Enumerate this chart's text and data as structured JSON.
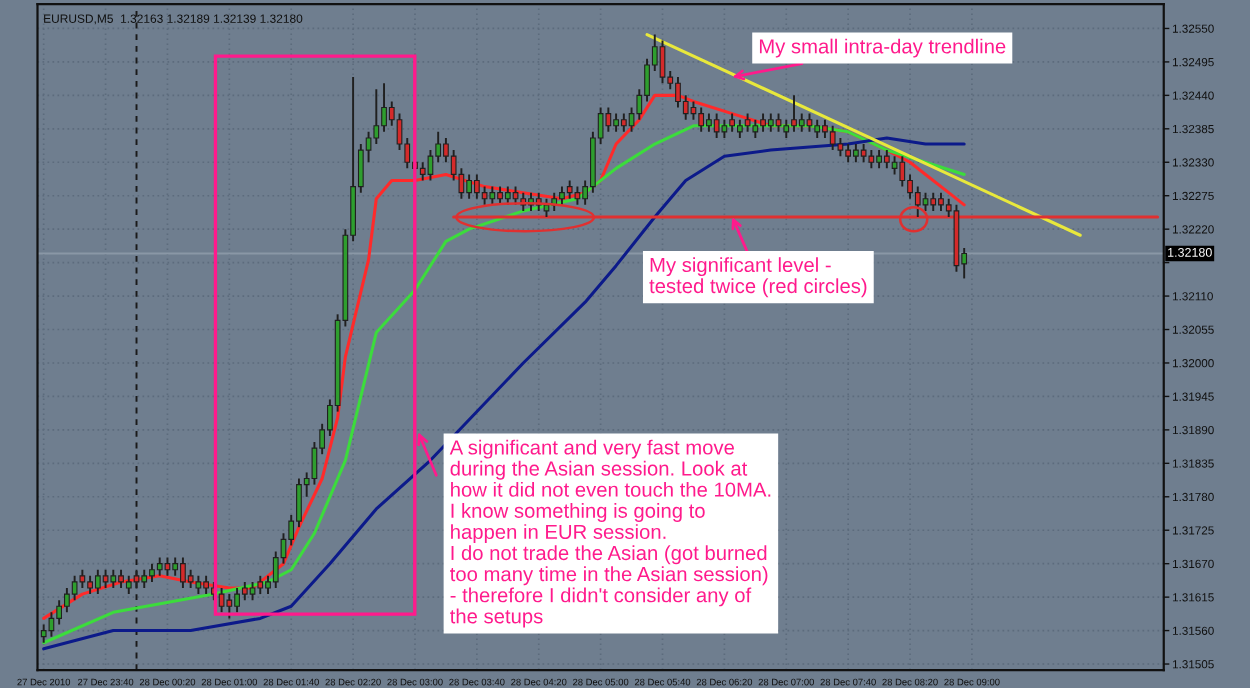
{
  "chart_data": {
    "type": "candlestick",
    "title": "EURUSD,M5  1.32163 1.32189 1.32139 1.32180",
    "x": [
      "2010-12-27T23:00",
      "2010-12-27T23:05",
      "2010-12-27T23:10",
      "2010-12-27T23:15",
      "2010-12-27T23:20",
      "2010-12-27T23:25",
      "2010-12-27T23:30",
      "2010-12-27T23:35",
      "2010-12-27T23:40",
      "2010-12-27T23:45",
      "2010-12-27T23:50",
      "2010-12-27T23:55",
      "2010-12-28T00:00",
      "2010-12-28T00:05",
      "2010-12-28T00:10",
      "2010-12-28T00:15",
      "2010-12-28T00:20",
      "2010-12-28T00:25",
      "2010-12-28T00:30",
      "2010-12-28T00:35",
      "2010-12-28T00:40",
      "2010-12-28T00:45",
      "2010-12-28T00:50",
      "2010-12-28T00:55",
      "2010-12-28T01:00",
      "2010-12-28T01:05",
      "2010-12-28T01:10",
      "2010-12-28T01:15",
      "2010-12-28T01:20",
      "2010-12-28T01:25",
      "2010-12-28T01:30",
      "2010-12-28T01:35",
      "2010-12-28T01:40",
      "2010-12-28T01:45",
      "2010-12-28T01:50",
      "2010-12-28T01:55",
      "2010-12-28T02:00",
      "2010-12-28T02:05",
      "2010-12-28T02:10",
      "2010-12-28T02:15",
      "2010-12-28T02:20",
      "2010-12-28T02:25",
      "2010-12-28T02:30",
      "2010-12-28T02:35",
      "2010-12-28T02:40",
      "2010-12-28T02:45",
      "2010-12-28T02:50",
      "2010-12-28T02:55",
      "2010-12-28T03:00",
      "2010-12-28T03:05",
      "2010-12-28T03:10",
      "2010-12-28T03:15",
      "2010-12-28T03:20",
      "2010-12-28T03:25",
      "2010-12-28T03:30",
      "2010-12-28T03:35",
      "2010-12-28T03:40",
      "2010-12-28T03:45",
      "2010-12-28T03:50",
      "2010-12-28T03:55",
      "2010-12-28T04:00",
      "2010-12-28T04:05",
      "2010-12-28T04:10",
      "2010-12-28T04:15",
      "2010-12-28T04:20",
      "2010-12-28T04:25",
      "2010-12-28T04:30",
      "2010-12-28T04:35",
      "2010-12-28T04:40",
      "2010-12-28T04:45",
      "2010-12-28T04:50",
      "2010-12-28T04:55",
      "2010-12-28T05:00",
      "2010-12-28T05:05",
      "2010-12-28T05:10",
      "2010-12-28T05:15",
      "2010-12-28T05:20",
      "2010-12-28T05:25",
      "2010-12-28T05:30",
      "2010-12-28T05:35",
      "2010-12-28T05:40",
      "2010-12-28T05:45",
      "2010-12-28T05:50",
      "2010-12-28T05:55",
      "2010-12-28T06:00",
      "2010-12-28T06:05",
      "2010-12-28T06:10",
      "2010-12-28T06:15",
      "2010-12-28T06:20",
      "2010-12-28T06:25",
      "2010-12-28T06:30",
      "2010-12-28T06:35",
      "2010-12-28T06:40",
      "2010-12-28T06:45",
      "2010-12-28T06:50",
      "2010-12-28T06:55",
      "2010-12-28T07:00",
      "2010-12-28T07:05",
      "2010-12-28T07:10",
      "2010-12-28T07:15",
      "2010-12-28T07:20",
      "2010-12-28T07:25",
      "2010-12-28T07:30",
      "2010-12-28T07:35",
      "2010-12-28T07:40",
      "2010-12-28T07:45",
      "2010-12-28T07:50",
      "2010-12-28T07:55",
      "2010-12-28T08:00",
      "2010-12-28T08:05",
      "2010-12-28T08:10",
      "2010-12-28T08:15",
      "2010-12-28T08:20",
      "2010-12-28T08:25",
      "2010-12-28T08:30",
      "2010-12-28T08:35",
      "2010-12-28T08:40",
      "2010-12-28T08:45",
      "2010-12-28T08:50",
      "2010-12-28T08:55"
    ],
    "ohlc": [
      [
        1.3155,
        1.3157,
        1.3154,
        1.3156
      ],
      [
        1.3156,
        1.3159,
        1.3155,
        1.3158
      ],
      [
        1.3158,
        1.3161,
        1.3157,
        1.316
      ],
      [
        1.316,
        1.3163,
        1.3159,
        1.3162
      ],
      [
        1.3162,
        1.3165,
        1.3161,
        1.3164
      ],
      [
        1.3165,
        1.3166,
        1.3163,
        1.3164
      ],
      [
        1.3164,
        1.3165,
        1.3162,
        1.3163
      ],
      [
        1.3163,
        1.3166,
        1.3162,
        1.3165
      ],
      [
        1.3165,
        1.3166,
        1.3163,
        1.3164
      ],
      [
        1.3164,
        1.3166,
        1.3163,
        1.3165
      ],
      [
        1.3165,
        1.3166,
        1.3163,
        1.3164
      ],
      [
        1.3163,
        1.3165,
        1.3162,
        1.3164
      ],
      [
        1.3165,
        1.3166,
        1.3163,
        1.3164
      ],
      [
        1.3164,
        1.3166,
        1.3163,
        1.3165
      ],
      [
        1.3165,
        1.3167,
        1.3164,
        1.3166
      ],
      [
        1.3166,
        1.3168,
        1.3165,
        1.3167
      ],
      [
        1.3167,
        1.3168,
        1.3165,
        1.3166
      ],
      [
        1.3166,
        1.3168,
        1.3165,
        1.3167
      ],
      [
        1.3167,
        1.3168,
        1.3163,
        1.3164
      ],
      [
        1.3165,
        1.3166,
        1.3163,
        1.3164
      ],
      [
        1.3163,
        1.3165,
        1.3162,
        1.3164
      ],
      [
        1.3164,
        1.3165,
        1.3162,
        1.3163
      ],
      [
        1.3163,
        1.3164,
        1.3161,
        1.3162
      ],
      [
        1.3162,
        1.3163,
        1.3159,
        1.316
      ],
      [
        1.3161,
        1.3162,
        1.3158,
        1.316
      ],
      [
        1.316,
        1.3163,
        1.3159,
        1.3162
      ],
      [
        1.3163,
        1.3164,
        1.3161,
        1.3162
      ],
      [
        1.3162,
        1.3164,
        1.3161,
        1.3163
      ],
      [
        1.3164,
        1.3165,
        1.3162,
        1.3163
      ],
      [
        1.3163,
        1.3165,
        1.3162,
        1.3164
      ],
      [
        1.3164,
        1.3169,
        1.3163,
        1.3168
      ],
      [
        1.3168,
        1.3172,
        1.3167,
        1.3171
      ],
      [
        1.3171,
        1.3175,
        1.317,
        1.3174
      ],
      [
        1.3174,
        1.3181,
        1.3173,
        1.318
      ],
      [
        1.318,
        1.3182,
        1.3178,
        1.3181
      ],
      [
        1.3181,
        1.3187,
        1.318,
        1.3186
      ],
      [
        1.3186,
        1.319,
        1.3185,
        1.3189
      ],
      [
        1.3189,
        1.3194,
        1.3188,
        1.3193
      ],
      [
        1.3193,
        1.3208,
        1.3192,
        1.3207
      ],
      [
        1.3207,
        1.3222,
        1.3206,
        1.3221
      ],
      [
        1.3221,
        1.3247,
        1.322,
        1.3229
      ],
      [
        1.3229,
        1.3236,
        1.3228,
        1.3235
      ],
      [
        1.3235,
        1.3238,
        1.3233,
        1.3237
      ],
      [
        1.3237,
        1.3245,
        1.3236,
        1.3239
      ],
      [
        1.3239,
        1.3246,
        1.3238,
        1.3242
      ],
      [
        1.3242,
        1.3243,
        1.3239,
        1.324
      ],
      [
        1.324,
        1.3241,
        1.3235,
        1.3236
      ],
      [
        1.3236,
        1.3237,
        1.3232,
        1.3233
      ],
      [
        1.3233,
        1.3234,
        1.3231,
        1.3232
      ],
      [
        1.3232,
        1.3233,
        1.323,
        1.3231
      ],
      [
        1.3231,
        1.3235,
        1.323,
        1.3234
      ],
      [
        1.3234,
        1.3238,
        1.3233,
        1.3236
      ],
      [
        1.3236,
        1.3237,
        1.3233,
        1.3234
      ],
      [
        1.3234,
        1.3235,
        1.323,
        1.3231
      ],
      [
        1.3231,
        1.3232,
        1.3227,
        1.3228
      ],
      [
        1.3228,
        1.3231,
        1.3227,
        1.323
      ],
      [
        1.323,
        1.3231,
        1.3227,
        1.3228
      ],
      [
        1.3228,
        1.3229,
        1.3226,
        1.3227
      ],
      [
        1.3227,
        1.3229,
        1.3226,
        1.3228
      ],
      [
        1.3228,
        1.3229,
        1.3226,
        1.3227
      ],
      [
        1.3227,
        1.3229,
        1.3226,
        1.3228
      ],
      [
        1.3228,
        1.3229,
        1.3226,
        1.3227
      ],
      [
        1.3227,
        1.3228,
        1.3225,
        1.3226
      ],
      [
        1.3226,
        1.3228,
        1.3225,
        1.3227
      ],
      [
        1.3227,
        1.3228,
        1.3225,
        1.3226
      ],
      [
        1.3225,
        1.3227,
        1.3224,
        1.3226
      ],
      [
        1.3226,
        1.3228,
        1.3225,
        1.3227
      ],
      [
        1.3227,
        1.3229,
        1.3226,
        1.3228
      ],
      [
        1.3229,
        1.323,
        1.3227,
        1.3228
      ],
      [
        1.3228,
        1.3229,
        1.3226,
        1.3227
      ],
      [
        1.3227,
        1.323,
        1.3226,
        1.3229
      ],
      [
        1.3229,
        1.3238,
        1.3228,
        1.3237
      ],
      [
        1.3237,
        1.3242,
        1.3236,
        1.3241
      ],
      [
        1.3241,
        1.3242,
        1.3238,
        1.3239
      ],
      [
        1.3239,
        1.3241,
        1.3238,
        1.324
      ],
      [
        1.324,
        1.3241,
        1.3238,
        1.3239
      ],
      [
        1.3239,
        1.3242,
        1.3238,
        1.3241
      ],
      [
        1.3241,
        1.3245,
        1.324,
        1.3244
      ],
      [
        1.3244,
        1.325,
        1.3243,
        1.3249
      ],
      [
        1.3249,
        1.3254,
        1.3248,
        1.3252
      ],
      [
        1.3252,
        1.3253,
        1.3246,
        1.3247
      ],
      [
        1.3247,
        1.3248,
        1.3245,
        1.3246
      ],
      [
        1.3246,
        1.3247,
        1.3242,
        1.3243
      ],
      [
        1.3243,
        1.3244,
        1.324,
        1.3241
      ],
      [
        1.3242,
        1.3243,
        1.324,
        1.3241
      ],
      [
        1.3241,
        1.3242,
        1.3238,
        1.3239
      ],
      [
        1.3239,
        1.3241,
        1.3238,
        1.324
      ],
      [
        1.324,
        1.3241,
        1.3237,
        1.3238
      ],
      [
        1.3238,
        1.324,
        1.3237,
        1.3239
      ],
      [
        1.324,
        1.3241,
        1.3238,
        1.3239
      ],
      [
        1.3238,
        1.324,
        1.3237,
        1.3239
      ],
      [
        1.324,
        1.3241,
        1.3238,
        1.3239
      ],
      [
        1.3238,
        1.324,
        1.3237,
        1.3239
      ],
      [
        1.324,
        1.3241,
        1.3238,
        1.3239
      ],
      [
        1.3239,
        1.3241,
        1.3238,
        1.324
      ],
      [
        1.324,
        1.3241,
        1.3238,
        1.3239
      ],
      [
        1.3238,
        1.324,
        1.3237,
        1.3239
      ],
      [
        1.324,
        1.3244,
        1.3238,
        1.3239
      ],
      [
        1.3239,
        1.3241,
        1.3238,
        1.324
      ],
      [
        1.324,
        1.3241,
        1.3238,
        1.3239
      ],
      [
        1.3238,
        1.324,
        1.3237,
        1.3239
      ],
      [
        1.3239,
        1.324,
        1.3237,
        1.3238
      ],
      [
        1.3238,
        1.3239,
        1.3235,
        1.3236
      ],
      [
        1.3236,
        1.3237,
        1.3234,
        1.3235
      ],
      [
        1.3235,
        1.3236,
        1.3233,
        1.3234
      ],
      [
        1.3234,
        1.3236,
        1.3233,
        1.3235
      ],
      [
        1.3235,
        1.3236,
        1.3233,
        1.3234
      ],
      [
        1.3234,
        1.3235,
        1.3232,
        1.3233
      ],
      [
        1.3233,
        1.3235,
        1.3232,
        1.3234
      ],
      [
        1.3234,
        1.3235,
        1.3232,
        1.3233
      ],
      [
        1.3232,
        1.3234,
        1.3231,
        1.3233
      ],
      [
        1.3233,
        1.3234,
        1.3229,
        1.323
      ],
      [
        1.323,
        1.3231,
        1.3227,
        1.3228
      ],
      [
        1.3228,
        1.3229,
        1.3224,
        1.3226
      ],
      [
        1.3226,
        1.3228,
        1.3225,
        1.3227
      ],
      [
        1.3227,
        1.3228,
        1.3225,
        1.3226
      ],
      [
        1.3227,
        1.3228,
        1.3225,
        1.3226
      ],
      [
        1.3226,
        1.3227,
        1.3224,
        1.3225
      ],
      [
        1.3225,
        1.3226,
        1.3215,
        1.3216
      ],
      [
        1.32163,
        1.32189,
        1.32139,
        1.3218
      ]
    ],
    "colors": [
      "#2e9e2e",
      "#2e9e2e",
      "#2e9e2e",
      "#2e9e2e",
      "#2e9e2e",
      "#d42a2a",
      "#d42a2a",
      "#2e9e2e",
      "#d42a2a",
      "#2e9e2e",
      "#d42a2a",
      "#2e9e2e",
      "#d42a2a",
      "#2e9e2e",
      "#2e9e2e",
      "#2e9e2e",
      "#d42a2a",
      "#2e9e2e",
      "#d42a2a",
      "#d42a2a",
      "#2e9e2e",
      "#d42a2a",
      "#d42a2a",
      "#d42a2a",
      "#d42a2a",
      "#2e9e2e",
      "#d42a2a",
      "#2e9e2e",
      "#d42a2a",
      "#2e9e2e",
      "#2e9e2e",
      "#2e9e2e",
      "#2e9e2e",
      "#2e9e2e",
      "#2e9e2e",
      "#2e9e2e",
      "#2e9e2e",
      "#2e9e2e",
      "#2e9e2e",
      "#2e9e2e",
      "#2e9e2e",
      "#2e9e2e",
      "#2e9e2e",
      "#2e9e2e",
      "#2e9e2e",
      "#d42a2a",
      "#d42a2a",
      "#d42a2a",
      "#d42a2a",
      "#d42a2a",
      "#2e9e2e",
      "#2e9e2e",
      "#d42a2a",
      "#d42a2a",
      "#d42a2a",
      "#2e9e2e",
      "#d42a2a",
      "#d42a2a",
      "#2e9e2e",
      "#d42a2a",
      "#2e9e2e",
      "#d42a2a",
      "#d42a2a",
      "#2e9e2e",
      "#d42a2a",
      "#2e9e2e",
      "#2e9e2e",
      "#2e9e2e",
      "#d42a2a",
      "#d42a2a",
      "#2e9e2e",
      "#2e9e2e",
      "#2e9e2e",
      "#d42a2a",
      "#2e9e2e",
      "#d42a2a",
      "#2e9e2e",
      "#2e9e2e",
      "#2e9e2e",
      "#2e9e2e",
      "#d42a2a",
      "#d42a2a",
      "#d42a2a",
      "#d42a2a",
      "#d42a2a",
      "#d42a2a",
      "#2e9e2e",
      "#d42a2a",
      "#2e9e2e",
      "#d42a2a",
      "#2e9e2e",
      "#d42a2a",
      "#2e9e2e",
      "#d42a2a",
      "#2e9e2e",
      "#d42a2a",
      "#2e9e2e",
      "#d42a2a",
      "#2e9e2e",
      "#d42a2a",
      "#2e9e2e",
      "#d42a2a",
      "#d42a2a",
      "#d42a2a",
      "#d42a2a",
      "#2e9e2e",
      "#d42a2a",
      "#d42a2a",
      "#2e9e2e",
      "#d42a2a",
      "#2e9e2e",
      "#d42a2a",
      "#d42a2a",
      "#d42a2a",
      "#2e9e2e",
      "#d42a2a",
      "#d42a2a",
      "#d42a2a",
      "#d42a2a",
      "#2e9e2e"
    ],
    "series": [
      {
        "type": "line",
        "color": "#ff2a2a",
        "x": [
          "2010-12-27T23:00",
          "2010-12-27T23:25",
          "2010-12-27T23:50",
          "2010-12-28T00:15",
          "2010-12-28T00:35",
          "2010-12-28T01:00",
          "2010-12-28T01:15",
          "2010-12-28T01:35",
          "2010-12-28T01:45",
          "2010-12-28T02:00",
          "2010-12-28T02:10",
          "2010-12-28T02:15",
          "2010-12-28T02:30",
          "2010-12-28T02:35",
          "2010-12-28T02:45",
          "2010-12-28T03:00",
          "2010-12-28T03:20",
          "2010-12-28T03:45",
          "2010-12-28T04:10",
          "2010-12-28T04:35",
          "2010-12-28T04:50",
          "2010-12-28T05:00",
          "2010-12-28T05:10",
          "2010-12-28T05:25",
          "2010-12-28T05:35",
          "2010-12-28T05:50",
          "2010-12-28T06:00",
          "2010-12-28T06:25",
          "2010-12-28T06:50",
          "2010-12-28T07:15",
          "2010-12-28T07:40",
          "2010-12-28T08:05",
          "2010-12-28T08:20",
          "2010-12-28T08:30",
          "2010-12-28T08:45",
          "2010-12-28T08:55"
        ],
        "values": [
          1.3158,
          1.3162,
          1.3164,
          1.3165,
          1.3164,
          1.3163,
          1.3163,
          1.3167,
          1.3173,
          1.3181,
          1.3191,
          1.3201,
          1.3217,
          1.3227,
          1.323,
          1.323,
          1.3231,
          1.3229,
          1.3228,
          1.3227,
          1.3228,
          1.323,
          1.3236,
          1.324,
          1.3244,
          1.3244,
          1.3243,
          1.3241,
          1.3239,
          1.3239,
          1.3238,
          1.3235,
          1.3233,
          1.3231,
          1.3228,
          1.3226
        ]
      },
      {
        "type": "line",
        "color": "#3cdc3c",
        "x": [
          "2010-12-27T23:00",
          "2010-12-27T23:45",
          "2010-12-28T00:50",
          "2010-12-28T01:25",
          "2010-12-28T01:40",
          "2010-12-28T01:55",
          "2010-12-28T02:15",
          "2010-12-28T02:35",
          "2010-12-28T03:00",
          "2010-12-28T03:20",
          "2010-12-28T03:35",
          "2010-12-28T04:10",
          "2010-12-28T04:45",
          "2010-12-28T05:10",
          "2010-12-28T05:35",
          "2010-12-28T06:00",
          "2010-12-28T06:25",
          "2010-12-28T06:50",
          "2010-12-28T07:15",
          "2010-12-28T07:40",
          "2010-12-28T08:05",
          "2010-12-28T08:30",
          "2010-12-28T08:55"
        ],
        "values": [
          1.3154,
          1.3159,
          1.3162,
          1.3164,
          1.3166,
          1.3172,
          1.3184,
          1.3205,
          1.3212,
          1.322,
          1.3222,
          1.3225,
          1.3227,
          1.3232,
          1.3236,
          1.3239,
          1.3239,
          1.3239,
          1.3239,
          1.3238,
          1.3235,
          1.3233,
          1.3231
        ]
      },
      {
        "type": "line",
        "color": "#0c1a8a",
        "x": [
          "2010-12-27T23:00",
          "2010-12-27T23:45",
          "2010-12-28T00:35",
          "2010-12-28T01:20",
          "2010-12-28T01:40",
          "2010-12-28T02:05",
          "2010-12-28T02:35",
          "2010-12-28T03:10",
          "2010-12-28T04:10",
          "2010-12-28T04:50",
          "2010-12-28T05:10",
          "2010-12-28T05:35",
          "2010-12-28T05:55",
          "2010-12-28T06:20",
          "2010-12-28T06:50",
          "2010-12-28T07:40",
          "2010-12-28T08:05",
          "2010-12-28T08:30",
          "2010-12-28T08:55"
        ],
        "values": [
          1.3153,
          1.3156,
          1.3156,
          1.3158,
          1.316,
          1.3167,
          1.3176,
          1.3184,
          1.32,
          1.321,
          1.3216,
          1.3224,
          1.323,
          1.3234,
          1.3235,
          1.3236,
          1.3237,
          1.3236,
          1.3236
        ]
      },
      {
        "type": "line",
        "color": "#e8e83c",
        "x": [
          "2010-12-28T05:30",
          "2010-12-28T10:10"
        ],
        "values": [
          1.3254,
          1.3221
        ]
      },
      {
        "type": "line",
        "color": "#e03030",
        "x": [
          "2010-12-28T03:25",
          "2010-12-28T11:00"
        ],
        "values": [
          1.3224,
          1.3224
        ]
      }
    ],
    "xlim": [
      "2010-12-27T22:56",
      "2010-12-28T11:04"
    ],
    "xticks": [
      {
        "value": "2010-12-27T23:00",
        "label": "27 Dec 2010"
      },
      {
        "value": "2010-12-27T23:40",
        "label": "27 Dec 23:40"
      },
      {
        "value": "2010-12-28T00:20",
        "label": "28 Dec 00:20"
      },
      {
        "value": "2010-12-28T01:00",
        "label": "28 Dec 01:00"
      },
      {
        "value": "2010-12-28T01:40",
        "label": "28 Dec 01:40"
      },
      {
        "value": "2010-12-28T02:20",
        "label": "28 Dec 02:20"
      },
      {
        "value": "2010-12-28T03:00",
        "label": "28 Dec 03:00"
      },
      {
        "value": "2010-12-28T03:40",
        "label": "28 Dec 03:40"
      },
      {
        "value": "2010-12-28T04:20",
        "label": "28 Dec 04:20"
      },
      {
        "value": "2010-12-28T05:00",
        "label": "28 Dec 05:00"
      },
      {
        "value": "2010-12-28T05:40",
        "label": "28 Dec 05:40"
      },
      {
        "value": "2010-12-28T06:20",
        "label": "28 Dec 06:20"
      },
      {
        "value": "2010-12-28T07:00",
        "label": "28 Dec 07:00"
      },
      {
        "value": "2010-12-28T07:40",
        "label": "28 Dec 07:40"
      },
      {
        "value": "2010-12-28T08:20",
        "label": "28 Dec 08:20"
      },
      {
        "value": "2010-12-28T09:00",
        "label": "28 Dec 09:00"
      }
    ],
    "ylim": [
      1.31495,
      1.3259
    ],
    "yticks": [
      {
        "value": 1.31505,
        "label": "1.31505"
      },
      {
        "value": 1.3156,
        "label": "1.31560"
      },
      {
        "value": 1.31615,
        "label": "1.31615"
      },
      {
        "value": 1.3167,
        "label": "1.31670"
      },
      {
        "value": 1.31725,
        "label": "1.31725"
      },
      {
        "value": 1.3178,
        "label": "1.31780"
      },
      {
        "value": 1.31835,
        "label": "1.31835"
      },
      {
        "value": 1.3189,
        "label": "1.31890"
      },
      {
        "value": 1.31945,
        "label": "1.31945"
      },
      {
        "value": 1.32,
        "label": "1.32000"
      },
      {
        "value": 1.32055,
        "label": "1.32055"
      },
      {
        "value": 1.3211,
        "label": "1.32110"
      },
      {
        "value": 1.32165,
        "label": null
      },
      {
        "value": 1.3222,
        "label": "1.32220"
      },
      {
        "value": 1.32275,
        "label": "1.32275"
      },
      {
        "value": 1.3233,
        "label": "1.32330"
      },
      {
        "value": 1.32385,
        "label": "1.32385"
      },
      {
        "value": 1.3244,
        "label": "1.32440"
      },
      {
        "value": 1.32495,
        "label": "1.32495"
      },
      {
        "value": 1.3255,
        "label": "1.32550"
      }
    ],
    "ref_lines": [
      {
        "axis": "x",
        "value": "2010-12-28T00:00",
        "label": null,
        "color": "#1a1a1a",
        "line_style": "dashed"
      },
      {
        "axis": "y",
        "value": 1.3218,
        "label": "1.32180",
        "color": "#8a97a6",
        "line_style": "solid"
      }
    ],
    "annotations": [
      {
        "text": "My small intra-day trendline",
        "x": "2010-12-28T06:25",
        "y": 1.3247
      },
      {
        "text": "My significant level -\ntested twice (red circles)",
        "x": "2010-12-28T06:25",
        "y": 1.3224
      },
      {
        "text": "A significant and very fast move\nduring the Asian session. Look at\nhow it did not even touch the 10MA.\nI know something is going to\nhappen in EUR session.\nI do not trade the Asian (got burned\ntoo many time in the Asian session)\n- therefore I didn't consider any of\nthe setups"
      }
    ],
    "grid": true
  }
}
